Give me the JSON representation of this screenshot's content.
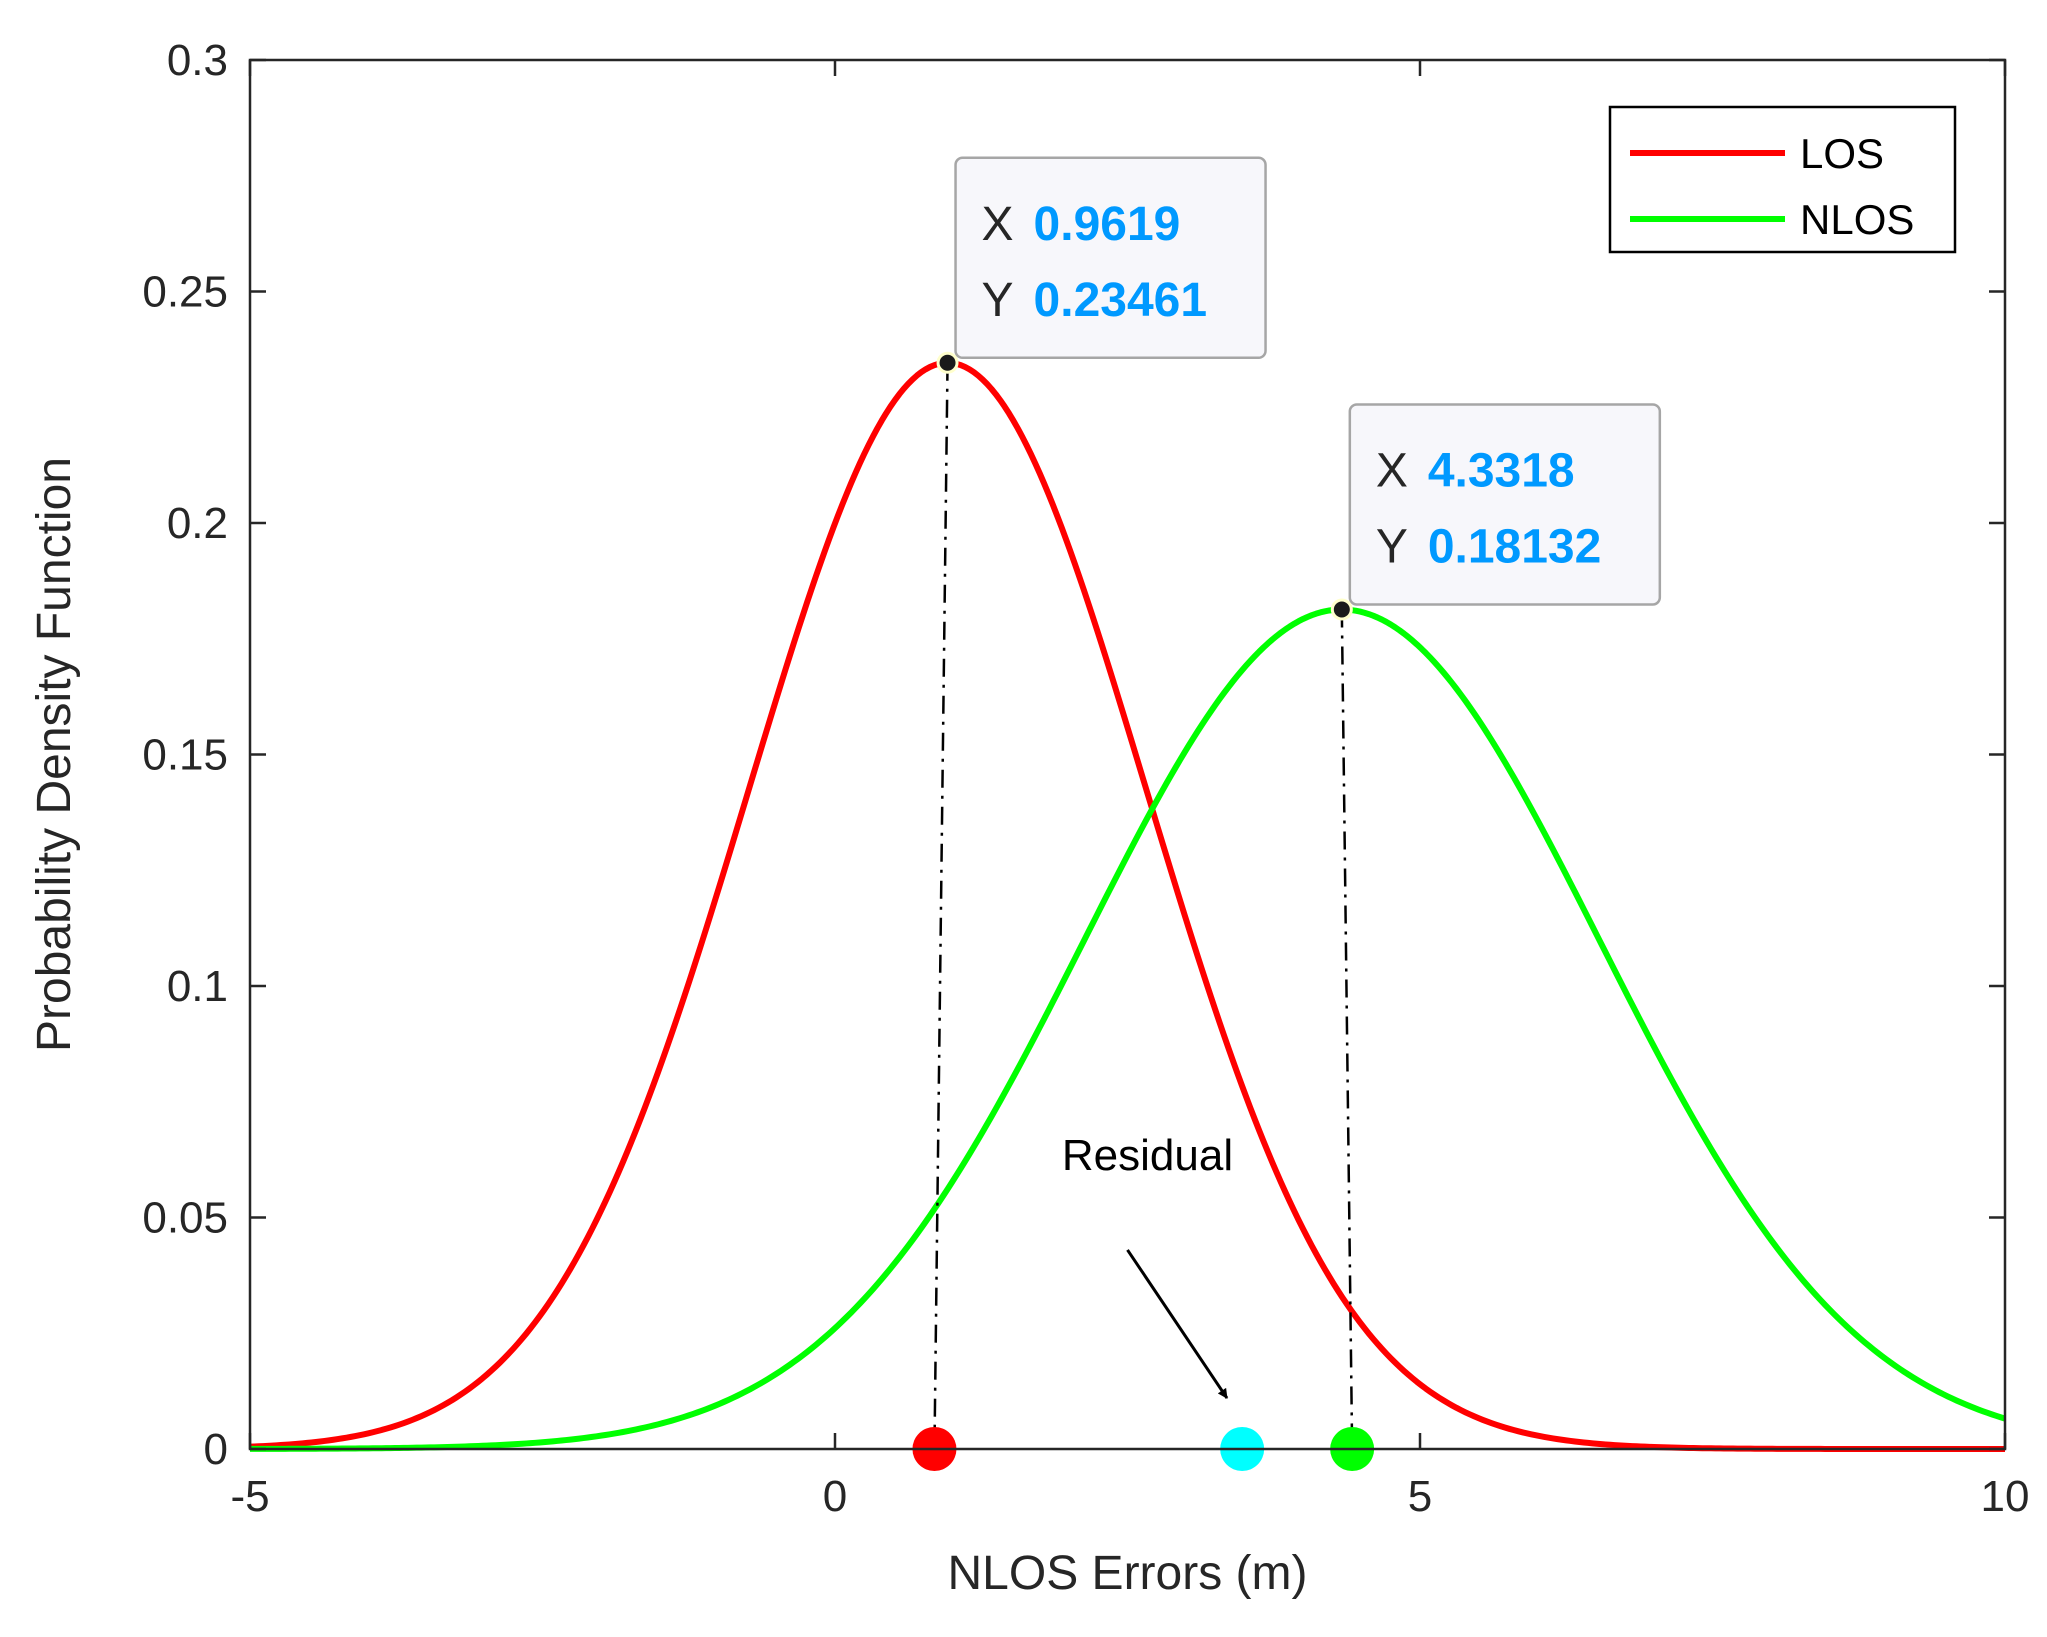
{
  "chart_data": {
    "type": "line",
    "xlabel": "NLOS Errors (m)",
    "ylabel": "Probability Density Function",
    "xlim": [
      -5,
      10
    ],
    "ylim": [
      0,
      0.3
    ],
    "x_ticks": [
      -5,
      0,
      5,
      10
    ],
    "x_tick_labels": [
      "-5",
      "0",
      "5",
      "10"
    ],
    "y_ticks": [
      0,
      0.05,
      0.1,
      0.15,
      0.2,
      0.25,
      0.3
    ],
    "y_tick_labels": [
      "0",
      "0.05",
      "0.1",
      "0.15",
      "0.2",
      "0.25",
      "0.3"
    ],
    "grid": false,
    "series": [
      {
        "name": "LOS",
        "color": "#ff0000",
        "distribution": "gaussian",
        "mean": 0.9619,
        "peak": 0.23461,
        "sigma": 1.7004
      },
      {
        "name": "NLOS",
        "color": "#00ff00",
        "distribution": "gaussian",
        "mean": 4.3318,
        "peak": 0.18132,
        "sigma": 2.2002
      }
    ],
    "legend": {
      "position": "top-right",
      "entries": [
        "LOS",
        "NLOS"
      ]
    },
    "datatips": [
      {
        "x_key": "X",
        "x_value": "0.9619",
        "y_key": "Y",
        "y_value": "0.23461",
        "x": 0.9619,
        "y": 0.23461,
        "marker_x": 0.85,
        "marker_color": "#ff0000"
      },
      {
        "x_key": "X",
        "x_value": "4.3318",
        "y_key": "Y",
        "y_value": "0.18132",
        "x": 4.3318,
        "y": 0.18132,
        "marker_x": 4.42,
        "marker_color": "#00ff00"
      }
    ],
    "points": [
      {
        "name": "LOS mean marker",
        "x": 0.85,
        "y": 0,
        "color": "#ff0000"
      },
      {
        "name": "Residual marker",
        "x": 3.48,
        "y": 0,
        "color": "#00ffff"
      },
      {
        "name": "NLOS mean marker",
        "x": 4.42,
        "y": 0,
        "color": "#00ff00"
      }
    ],
    "annotation": {
      "text": "Residual",
      "arrow_from": [
        2.5,
        0.043
      ],
      "arrow_to": [
        3.35,
        0.011
      ]
    },
    "datatip_value_color": "#0099ff"
  }
}
